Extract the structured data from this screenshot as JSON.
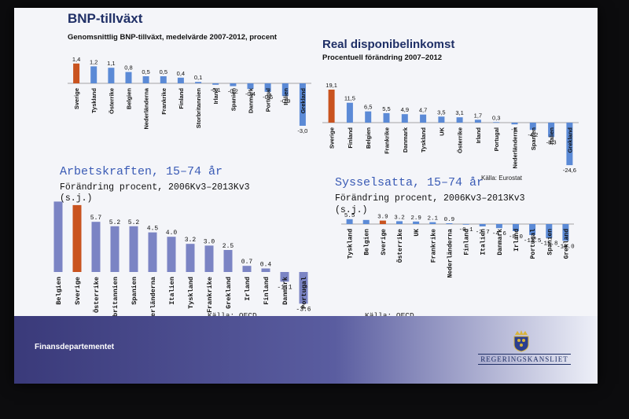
{
  "colors": {
    "highlight": "#c9531f",
    "bar": "#5b8ad6",
    "bar_alt": "#7b84c4",
    "navy": "#1f2f66"
  },
  "footer": {
    "ministry": "Finansdepartementet",
    "agency": "REGERINGSKANSLIET",
    "logo_icon": "crown-shield-icon"
  },
  "chart_data": [
    {
      "type": "bar",
      "title": "BNP-tillväxt",
      "subtitle": "Genomsnittlig BNP-tillväxt, medelvärde 2007-2012, procent",
      "categories": [
        "Sverige",
        "Tyskland",
        "Österrike",
        "Belgien",
        "Nederländerna",
        "Frankrike",
        "Finland",
        "Storbritannien",
        "Irland",
        "Spanien",
        "Danmark",
        "Portugal",
        "Italien",
        "Grekland"
      ],
      "value_labels": [
        "1,4",
        "1,2",
        "1,1",
        "0,8",
        "0,5",
        "0,5",
        "0,4",
        "0,1",
        "-0,1",
        "-0,2",
        "-0,4",
        "-0,6",
        "-0,9",
        "-3,0"
      ],
      "values": [
        1.4,
        1.2,
        1.1,
        0.8,
        0.5,
        0.5,
        0.4,
        0.1,
        -0.1,
        -0.2,
        -0.4,
        -0.6,
        -0.9,
        -3.0
      ],
      "highlight": "Sverige",
      "grid": false
    },
    {
      "type": "bar",
      "title": "Real disponibelinkomst",
      "subtitle": "Procentuell förändring 2007–2012",
      "categories": [
        "Sverige",
        "Finland",
        "Belgien",
        "Frankrike",
        "Danmark",
        "Tyskland",
        "UK",
        "Österrike",
        "Irland",
        "Portugal",
        "Nederländerna",
        "Spanien",
        "Italien",
        "Grekland"
      ],
      "value_labels": [
        "19,1",
        "11,5",
        "6,5",
        "5,5",
        "4,9",
        "4,7",
        "3,5",
        "3,1",
        "1,7",
        "0,3",
        "-1,",
        "-4,2",
        "-8,3",
        "-24,6"
      ],
      "values": [
        19.1,
        11.5,
        6.5,
        5.5,
        4.9,
        4.7,
        3.5,
        3.1,
        1.7,
        0.3,
        -1.0,
        -4.2,
        -8.3,
        -24.6
      ],
      "highlight": "Sverige",
      "source": "Källa: Eurostat",
      "grid": false
    },
    {
      "type": "bar",
      "title": "Arbetskraften, 15–74 år",
      "subtitle": "Förändring procent, 2006Kv3–2013Kv3",
      "note": "(s.j.)",
      "categories": [
        "Belgien",
        "Sverige",
        "Österrike",
        "Storbritannien",
        "Spanien",
        "Nederländerna",
        "Italien",
        "Tyskland",
        "Frankrike",
        "Grekland",
        "Irland",
        "Finland",
        "Danmark",
        "Portugal"
      ],
      "value_labels": [
        "",
        "",
        "5.7",
        "5.2",
        "5.2",
        "4.5",
        "4.0",
        "3.2",
        "3.0",
        "2.5",
        "0.7",
        "0.4",
        "-1.1",
        "-3.6"
      ],
      "values": [
        8.0,
        7.6,
        5.7,
        5.2,
        5.2,
        4.5,
        4.0,
        3.2,
        3.0,
        2.5,
        0.7,
        0.4,
        -1.1,
        -3.6
      ],
      "highlight": "Sverige",
      "source": "Källa: OECD",
      "grid": false
    },
    {
      "type": "bar",
      "title": "Sysselsatta, 15–74 år",
      "subtitle": "Förändring procent, 2006Kv3–2013Kv3",
      "note": "(s.j.)",
      "categories": [
        "Tyskland",
        "Belgien",
        "Sverige",
        "Österrike",
        "UK",
        "Frankrike",
        "Nederländerna",
        "Finland",
        "Italien",
        "Danmark",
        "Irland",
        "Portugal",
        "Spanien",
        "Grekland"
      ],
      "value_labels": [
        "5.5",
        "",
        "3.9",
        "3.2",
        "2.9",
        "2.1",
        "0.9",
        "-0.1",
        "-2.7",
        "-4.6",
        "-8.0",
        "-12.5",
        "-15.8",
        "-19.0"
      ],
      "values": [
        5.5,
        4.6,
        3.9,
        3.2,
        2.9,
        2.1,
        0.9,
        -0.1,
        -2.7,
        -4.6,
        -8.0,
        -12.5,
        -15.8,
        -19.0
      ],
      "highlight": "Sverige",
      "source": "Källa: OECD",
      "grid": false
    }
  ]
}
